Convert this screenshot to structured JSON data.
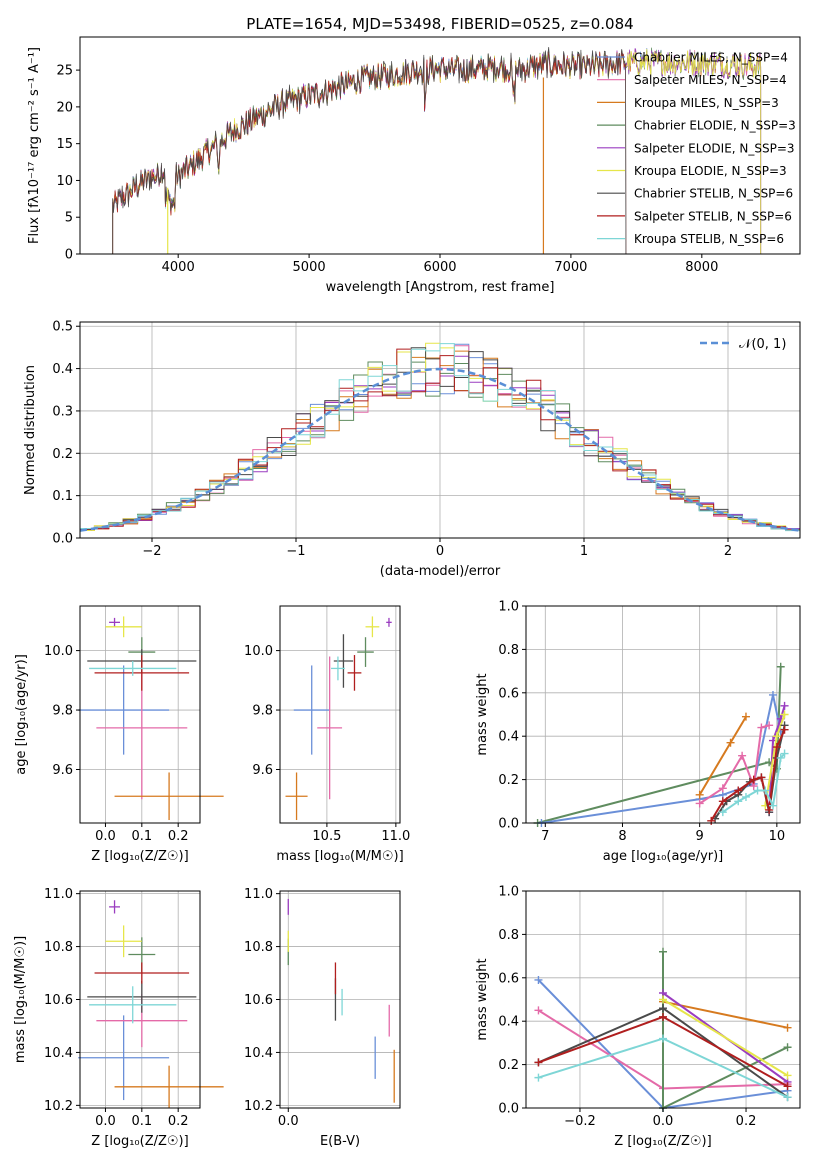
{
  "colors": {
    "chabrier_miles": "#6a8fd8",
    "salpeter_miles": "#e46aa8",
    "kroupa_miles": "#d67a1f",
    "chabrier_elodie": "#5f8c5f",
    "salpeter_elodie": "#9a3dc0",
    "kroupa_elodie": "#e6e64a",
    "chabrier_stelib": "#4a4a4a",
    "salpeter_stelib": "#b01e1e",
    "kroupa_stelib": "#7ed6d6",
    "normal_curve": "#5a8fd6",
    "grid": "#b0b0b0"
  },
  "chart_data": [
    {
      "type": "line",
      "title": "PLATE=1654, MJD=53498, FIBERID=0525, z=0.084",
      "xlabel": "wavelength [Angstrom, rest frame]",
      "ylabel": "Flux [fλ10⁻¹⁷ erg cm⁻² s⁻¹ A⁻¹]",
      "xlim": [
        3250,
        8750
      ],
      "ylim": [
        0,
        29.5
      ],
      "xticks": [
        "4000",
        "5000",
        "6000",
        "7000",
        "8000"
      ],
      "yticks": [
        "0",
        "5",
        "10",
        "15",
        "20",
        "25"
      ],
      "grid": false,
      "legend_position": "upper-right",
      "series": [
        {
          "name": "Chabrier MILES, N_SSP=4",
          "color_key": "chabrier_miles"
        },
        {
          "name": "Salpeter MILES, N_SSP=4",
          "color_key": "salpeter_miles"
        },
        {
          "name": "Kroupa MILES, N_SSP=3",
          "color_key": "kroupa_miles"
        },
        {
          "name": "Chabrier ELODIE, N_SSP=3",
          "color_key": "chabrier_elodie"
        },
        {
          "name": "Salpeter ELODIE, N_SSP=3",
          "color_key": "salpeter_elodie"
        },
        {
          "name": "Kroupa ELODIE, N_SSP=3",
          "color_key": "kroupa_elodie"
        },
        {
          "name": "Chabrier STELIB, N_SSP=6",
          "color_key": "chabrier_stelib"
        },
        {
          "name": "Salpeter STELIB, N_SSP=6",
          "color_key": "salpeter_stelib"
        },
        {
          "name": "Kroupa STELIB, N_SSP=6",
          "color_key": "kroupa_stelib"
        }
      ],
      "continuum": {
        "x": [
          3500,
          3700,
          3900,
          4000,
          4200,
          4400,
          4600,
          4800,
          5000,
          5200,
          5400,
          5600,
          5800,
          6000,
          6200,
          6400,
          6600,
          6800,
          7000,
          7200,
          7400,
          7600,
          7800,
          8000,
          8200,
          8400
        ],
        "y": [
          6.5,
          9.5,
          11.5,
          10.5,
          13.5,
          16.5,
          18.5,
          20.5,
          21.5,
          22.5,
          23.8,
          24.2,
          25.0,
          25.2,
          25.0,
          25.4,
          25.0,
          25.8,
          25.5,
          25.5,
          26.0,
          26.2,
          26.0,
          26.0,
          25.8,
          25.5
        ]
      },
      "spectrum_end": {
        "stelib": 7420,
        "miles_elodie": 8450
      },
      "edge_drops": [
        {
          "x": 3920,
          "series": "Kroupa ELODIE"
        },
        {
          "x": 6790,
          "series": "Kroupa MILES"
        }
      ]
    },
    {
      "type": "histogram",
      "xlabel": "(data-model)/error",
      "ylabel": "Normed distribution",
      "xlim": [
        -2.5,
        2.5
      ],
      "ylim": [
        0,
        0.51
      ],
      "xticks": [
        "−2",
        "−1",
        "0",
        "1",
        "2"
      ],
      "yticks": [
        "0.0",
        "0.1",
        "0.2",
        "0.3",
        "0.4",
        "0.5"
      ],
      "grid": true,
      "legend_position": "upper-right",
      "normal_label": "𝒩(0, 1)",
      "bin_edges_start": -2.5,
      "bin_width": 0.1
    },
    {
      "type": "errorbar",
      "xlabel": "Z [log₁₀(Z/Z☉)]",
      "ylabel": "age  [log₁₀(age/yr)]",
      "xlim": [
        -0.07,
        0.26
      ],
      "ylim": [
        9.42,
        10.15
      ],
      "xticks": [
        "0.0",
        "0.1",
        "0.2"
      ],
      "yticks": [
        "9.6",
        "9.8",
        "10.0"
      ],
      "points": [
        {
          "series": "chabrier_miles",
          "x": 0.05,
          "y": 9.8,
          "xerr": 0.125,
          "yerr": 0.15
        },
        {
          "series": "salpeter_miles",
          "x": 0.1,
          "y": 9.74,
          "xerr": 0.125,
          "yerr": 0.24
        },
        {
          "series": "kroupa_miles",
          "x": 0.175,
          "y": 9.51,
          "xerr": 0.15,
          "yerr": 0.08
        },
        {
          "series": "chabrier_elodie",
          "x": 0.1,
          "y": 9.995,
          "xerr": 0.037,
          "yerr": 0.05
        },
        {
          "series": "salpeter_elodie",
          "x": 0.025,
          "y": 10.095,
          "xerr": 0.015,
          "yerr": 0.015
        },
        {
          "series": "kroupa_elodie",
          "x": 0.05,
          "y": 10.08,
          "xerr": 0.05,
          "yerr": 0.035
        },
        {
          "series": "chabrier_stelib",
          "x": 0.1,
          "y": 9.965,
          "xerr": 0.15,
          "yerr": 0.04
        },
        {
          "series": "salpeter_stelib",
          "x": 0.1,
          "y": 9.925,
          "xerr": 0.13,
          "yerr": 0.06
        },
        {
          "series": "kroupa_stelib",
          "x": 0.075,
          "y": 9.94,
          "xerr": 0.12,
          "yerr": 0.025
        }
      ]
    },
    {
      "type": "errorbar",
      "xlabel": "mass [log₁₀(M/M☉)]",
      "xlim": [
        10.16,
        11.03
      ],
      "ylim": [
        9.42,
        10.15
      ],
      "xticks": [
        "10.5",
        "11.0"
      ],
      "yticks": [
        "9.6",
        "9.8",
        "10.0"
      ],
      "points": [
        {
          "series": "chabrier_miles",
          "x": 10.39,
          "y": 9.8,
          "xerr": 0.13,
          "yerr": 0.15
        },
        {
          "series": "salpeter_miles",
          "x": 10.52,
          "y": 9.74,
          "xerr": 0.09,
          "yerr": 0.24
        },
        {
          "series": "kroupa_miles",
          "x": 10.28,
          "y": 9.51,
          "xerr": 0.08,
          "yerr": 0.08
        },
        {
          "series": "chabrier_elodie",
          "x": 10.78,
          "y": 9.995,
          "xerr": 0.06,
          "yerr": 0.05
        },
        {
          "series": "salpeter_elodie",
          "x": 10.95,
          "y": 10.095,
          "xerr": 0.02,
          "yerr": 0.015
        },
        {
          "series": "kroupa_elodie",
          "x": 10.83,
          "y": 10.08,
          "xerr": 0.05,
          "yerr": 0.035
        },
        {
          "series": "chabrier_stelib",
          "x": 10.62,
          "y": 9.965,
          "xerr": 0.07,
          "yerr": 0.09
        },
        {
          "series": "salpeter_stelib",
          "x": 10.7,
          "y": 9.925,
          "xerr": 0.05,
          "yerr": 0.06
        },
        {
          "series": "kroupa_stelib",
          "x": 10.58,
          "y": 9.94,
          "xerr": 0.05,
          "yerr": 0.04
        }
      ]
    },
    {
      "type": "line",
      "xlabel": "age  [log₁₀(age/yr)]",
      "ylabel": "mass weight",
      "xlim": [
        6.75,
        10.3
      ],
      "ylim": [
        0,
        1
      ],
      "xticks": [
        "7",
        "8",
        "9",
        "10"
      ],
      "yticks": [
        "0.0",
        "0.2",
        "0.4",
        "0.6",
        "0.8",
        "1.0"
      ],
      "grid": true,
      "series": [
        {
          "series": "chabrier_elodie",
          "x": [
            6.9,
            9.9,
            10.0,
            10.05
          ],
          "y": [
            0.0,
            0.28,
            0.25,
            0.72
          ]
        },
        {
          "series": "chabrier_miles",
          "x": [
            6.95,
            9.0,
            9.3,
            9.7,
            9.95,
            10.05
          ],
          "y": [
            0.0,
            0.11,
            0.13,
            0.18,
            0.59,
            0.42
          ]
        },
        {
          "series": "kroupa_miles",
          "x": [
            9.0,
            9.4,
            9.6
          ],
          "y": [
            0.13,
            0.37,
            0.49
          ]
        },
        {
          "series": "salpeter_miles",
          "x": [
            9.0,
            9.3,
            9.55,
            9.7,
            9.8,
            9.9
          ],
          "y": [
            0.09,
            0.16,
            0.31,
            0.17,
            0.44,
            0.45
          ]
        },
        {
          "series": "salpeter_elodie",
          "x": [
            9.9,
            9.95,
            10.05,
            10.1
          ],
          "y": [
            0.05,
            0.38,
            0.48,
            0.54
          ]
        },
        {
          "series": "kroupa_elodie",
          "x": [
            9.85,
            10.0,
            10.1
          ],
          "y": [
            0.08,
            0.4,
            0.5
          ]
        },
        {
          "series": "chabrier_stelib",
          "x": [
            9.2,
            9.35,
            9.5,
            9.65,
            9.8,
            9.9,
            10.0,
            10.1
          ],
          "y": [
            0.02,
            0.1,
            0.13,
            0.19,
            0.21,
            0.05,
            0.3,
            0.45
          ]
        },
        {
          "series": "salpeter_stelib",
          "x": [
            9.15,
            9.3,
            9.5,
            9.7,
            9.8,
            9.9,
            10.0,
            10.1
          ],
          "y": [
            0.01,
            0.1,
            0.15,
            0.2,
            0.21,
            0.06,
            0.35,
            0.43
          ]
        },
        {
          "series": "kroupa_stelib",
          "x": [
            9.3,
            9.5,
            9.6,
            9.75,
            9.85,
            9.95,
            10.05,
            10.1
          ],
          "y": [
            0.05,
            0.1,
            0.12,
            0.15,
            0.15,
            0.08,
            0.3,
            0.32
          ]
        }
      ]
    },
    {
      "type": "errorbar",
      "xlabel": "Z [log₁₀(Z/Z☉)]",
      "ylabel": "mass [log₁₀(M/M☉)]",
      "xlim": [
        -0.07,
        0.26
      ],
      "ylim": [
        10.19,
        11.01
      ],
      "xticks": [
        "0.0",
        "0.1",
        "0.2"
      ],
      "yticks": [
        "10.2",
        "10.4",
        "10.6",
        "10.8",
        "11.0"
      ],
      "points": [
        {
          "series": "chabrier_miles",
          "x": 0.05,
          "y": 10.38,
          "xerr": 0.125,
          "yerr": 0.16
        },
        {
          "series": "salpeter_miles",
          "x": 0.1,
          "y": 10.52,
          "xerr": 0.125,
          "yerr": 0.1
        },
        {
          "series": "kroupa_miles",
          "x": 0.175,
          "y": 10.27,
          "xerr": 0.15,
          "yerr": 0.08
        },
        {
          "series": "chabrier_elodie",
          "x": 0.1,
          "y": 10.77,
          "xerr": 0.037,
          "yerr": 0.065
        },
        {
          "series": "salpeter_elodie",
          "x": 0.025,
          "y": 10.95,
          "xerr": 0.015,
          "yerr": 0.025
        },
        {
          "series": "kroupa_elodie",
          "x": 0.05,
          "y": 10.82,
          "xerr": 0.05,
          "yerr": 0.06
        },
        {
          "series": "chabrier_stelib",
          "x": 0.1,
          "y": 10.61,
          "xerr": 0.15,
          "yerr": 0.06
        },
        {
          "series": "salpeter_stelib",
          "x": 0.1,
          "y": 10.7,
          "xerr": 0.13,
          "yerr": 0.04
        },
        {
          "series": "kroupa_stelib",
          "x": 0.075,
          "y": 10.58,
          "xerr": 0.12,
          "yerr": 0.07
        }
      ]
    },
    {
      "type": "errorbar",
      "xlabel": "E(B-V)",
      "xlim": [
        -0.01,
        0.135
      ],
      "ylim": [
        10.19,
        11.01
      ],
      "xticks": [
        "0.0"
      ],
      "yticks": [
        "10.2",
        "10.4",
        "10.6",
        "10.8",
        "11.0"
      ],
      "points": [
        {
          "series": "chabrier_miles",
          "x": 0.105,
          "y": 10.38,
          "yerr": 0.08
        },
        {
          "series": "salpeter_miles",
          "x": 0.122,
          "y": 10.52,
          "yerr": 0.06
        },
        {
          "series": "kroupa_miles",
          "x": 0.128,
          "y": 10.31,
          "yerr": 0.1
        },
        {
          "series": "chabrier_elodie",
          "x": 0.0,
          "y": 10.78,
          "yerr": 0.05
        },
        {
          "series": "salpeter_elodie",
          "x": 0.0,
          "y": 10.95,
          "yerr": 0.03
        },
        {
          "series": "kroupa_elodie",
          "x": 0.0,
          "y": 10.82,
          "yerr": 0.04
        },
        {
          "series": "chabrier_stelib",
          "x": 0.057,
          "y": 10.6,
          "yerr": 0.08
        },
        {
          "series": "salpeter_stelib",
          "x": 0.057,
          "y": 10.68,
          "yerr": 0.06
        },
        {
          "series": "kroupa_stelib",
          "x": 0.065,
          "y": 10.59,
          "yerr": 0.05
        }
      ]
    },
    {
      "type": "line",
      "xlabel": "Z [log₁₀(Z/Z☉)]",
      "ylabel": "mass weight",
      "xlim": [
        -0.33,
        0.33
      ],
      "ylim": [
        0,
        1
      ],
      "xticks": [
        "−0.2",
        "0.0",
        "0.2"
      ],
      "yticks": [
        "0.0",
        "0.2",
        "0.4",
        "0.6",
        "0.8",
        "1.0"
      ],
      "grid": true,
      "series": [
        {
          "series": "chabrier_miles",
          "x": [
            -0.3,
            0.0,
            0.3
          ],
          "y": [
            0.59,
            0.0,
            0.08
          ]
        },
        {
          "series": "salpeter_miles",
          "x": [
            -0.3,
            0.0,
            0.3
          ],
          "y": [
            0.45,
            0.09,
            0.11
          ]
        },
        {
          "series": "kroupa_miles",
          "x": [
            0.0,
            0.3
          ],
          "y": [
            0.49,
            0.37
          ]
        },
        {
          "series": "chabrier_elodie",
          "x": [
            0.0,
            0.0,
            0.3
          ],
          "y": [
            0.72,
            0.0,
            0.28
          ]
        },
        {
          "series": "salpeter_elodie",
          "x": [
            0.0,
            0.3
          ],
          "y": [
            0.53,
            0.12
          ]
        },
        {
          "series": "kroupa_elodie",
          "x": [
            0.0,
            0.3
          ],
          "y": [
            0.5,
            0.15
          ]
        },
        {
          "series": "chabrier_stelib",
          "x": [
            -0.3,
            0.0,
            0.3
          ],
          "y": [
            0.21,
            0.46,
            0.05
          ]
        },
        {
          "series": "salpeter_stelib",
          "x": [
            -0.3,
            0.0,
            0.3
          ],
          "y": [
            0.21,
            0.42,
            0.1
          ]
        },
        {
          "series": "kroupa_stelib",
          "x": [
            -0.3,
            0.0,
            0.3
          ],
          "y": [
            0.14,
            0.32,
            0.05
          ]
        }
      ]
    }
  ]
}
